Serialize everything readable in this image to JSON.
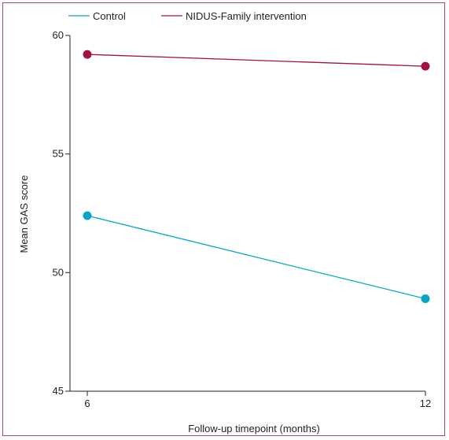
{
  "chart_data": {
    "type": "line",
    "title": "",
    "xlabel": "Follow-up timepoint (months)",
    "ylabel": "Mean GAS score",
    "x": [
      6,
      12
    ],
    "xlim": [
      6,
      12
    ],
    "ylim": [
      45,
      60
    ],
    "yticks": [
      "45",
      "50",
      "55",
      "60"
    ],
    "xticks": [
      "6",
      "12"
    ],
    "grid": false,
    "legend_position": "top",
    "series": [
      {
        "name": "Control",
        "color": "#0aa5c0",
        "values": [
          52.4,
          48.9
        ]
      },
      {
        "name": "NIDUS-Family intervention",
        "color": "#a0123f",
        "values": [
          59.2,
          58.7
        ]
      }
    ]
  }
}
